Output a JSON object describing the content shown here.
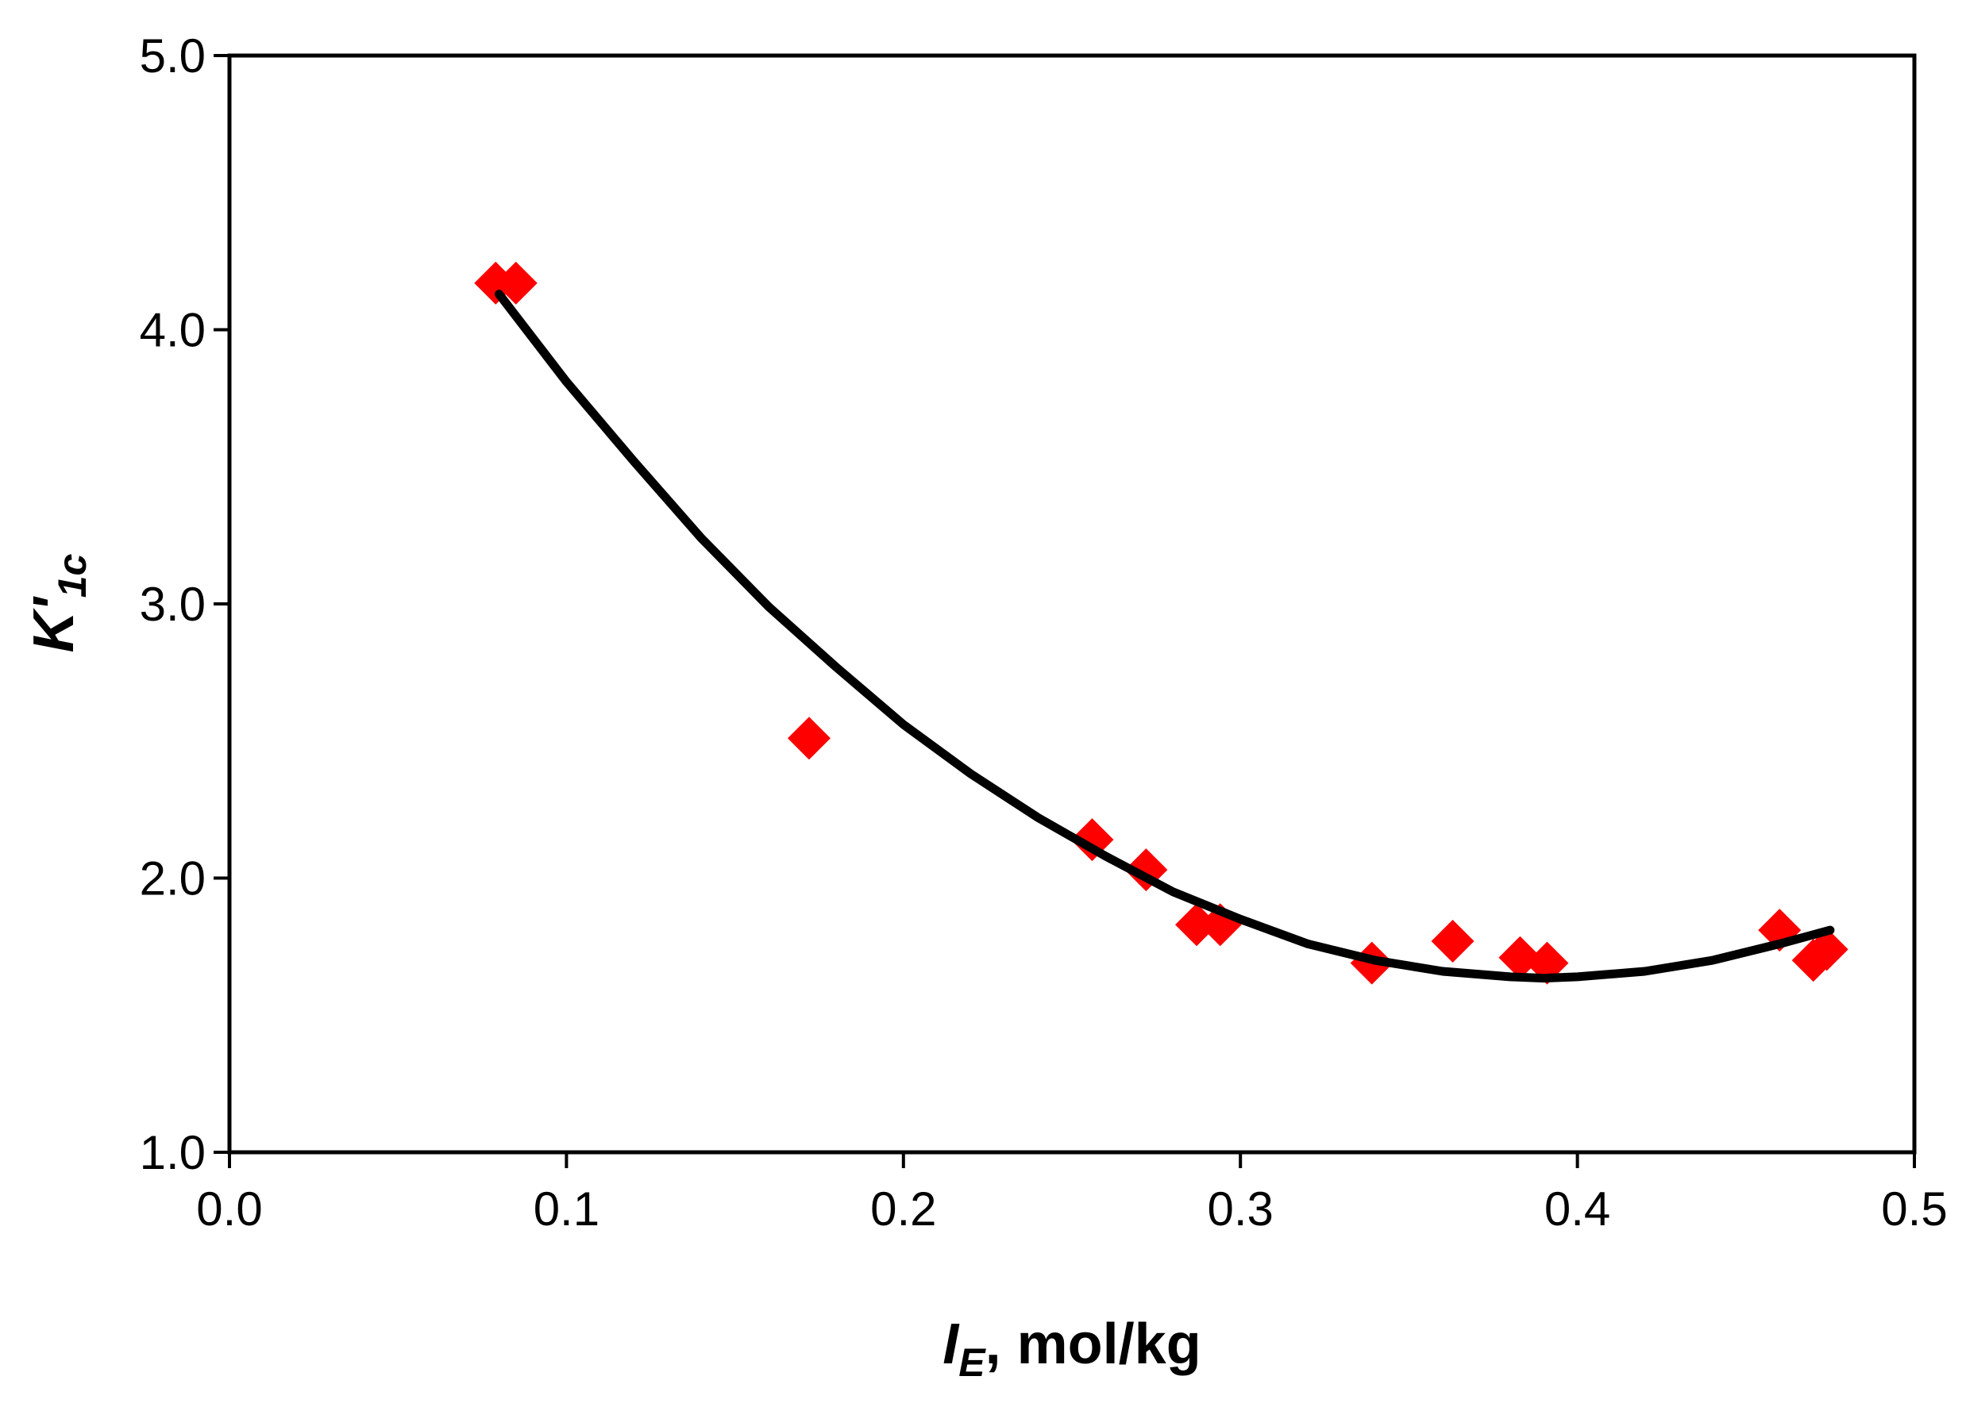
{
  "chart_data": {
    "type": "scatter",
    "title": "",
    "xlabel": {
      "main": "I",
      "sub": "E",
      "rest": ", mol/kg"
    },
    "ylabel": {
      "main": "K'",
      "sub": "1c"
    },
    "xlim": [
      0.0,
      0.5
    ],
    "ylim": [
      1.0,
      5.0
    ],
    "xticks": [
      "0.0",
      "0.1",
      "0.2",
      "0.3",
      "0.4",
      "0.5"
    ],
    "yticks": [
      "1.0",
      "2.0",
      "3.0",
      "4.0",
      "5.0"
    ],
    "grid": false,
    "legend": "none",
    "series": [
      {
        "kind": "points",
        "marker": "diamond",
        "color": "#ff0000",
        "x": [
          0.079,
          0.085,
          0.172,
          0.256,
          0.272,
          0.287,
          0.294,
          0.339,
          0.363,
          0.383,
          0.391,
          0.46,
          0.47,
          0.474
        ],
        "y": [
          4.17,
          4.17,
          2.51,
          2.14,
          2.03,
          1.83,
          1.83,
          1.69,
          1.77,
          1.71,
          1.69,
          1.81,
          1.7,
          1.74
        ]
      },
      {
        "kind": "fit",
        "color": "#000000",
        "x": [
          0.08,
          0.1,
          0.12,
          0.14,
          0.16,
          0.18,
          0.2,
          0.22,
          0.24,
          0.26,
          0.28,
          0.3,
          0.32,
          0.34,
          0.36,
          0.38,
          0.39,
          0.4,
          0.42,
          0.44,
          0.46,
          0.475
        ],
        "y": [
          4.13,
          3.81,
          3.52,
          3.24,
          2.99,
          2.77,
          2.56,
          2.38,
          2.22,
          2.08,
          1.95,
          1.85,
          1.76,
          1.7,
          1.66,
          1.64,
          1.635,
          1.64,
          1.66,
          1.7,
          1.76,
          1.81
        ]
      }
    ]
  }
}
